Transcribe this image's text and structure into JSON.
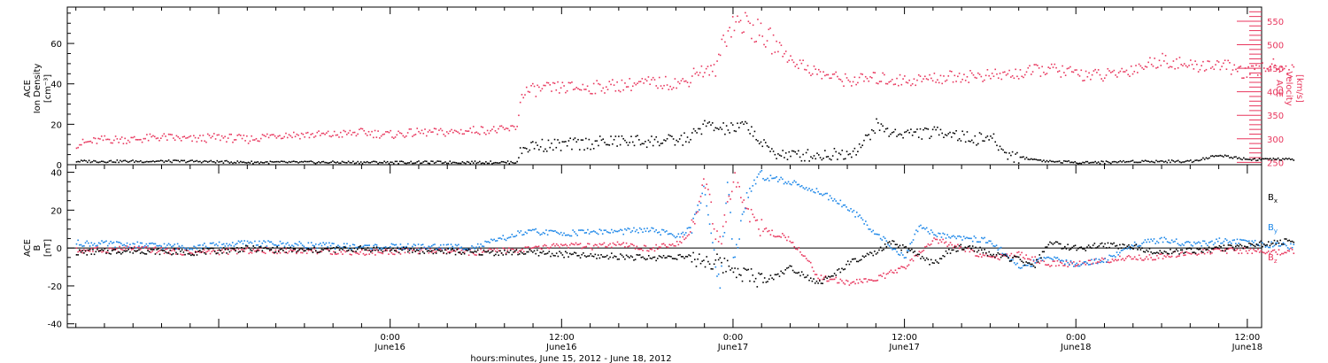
{
  "colors": {
    "black": "#000000",
    "pink": "#e8365d",
    "blue": "#1b86e8"
  },
  "x_axis": {
    "label": "hours:minutes, June 15, 2012 - June 18, 2012",
    "range_hours": [
      -11.3,
      30.5
    ],
    "ticks": [
      {
        "hours": -18,
        "time": "",
        "date": ""
      },
      {
        "hours": -12,
        "time": "",
        "date": ""
      },
      {
        "hours": -6,
        "time": "",
        "date": ""
      },
      {
        "hours": 0,
        "time": "0:00",
        "date": "June16"
      },
      {
        "hours": 6,
        "time": "12:00",
        "date": "June16"
      },
      {
        "hours": 12,
        "time": "0:00",
        "date": "June17"
      },
      {
        "hours": 18,
        "time": "12:00",
        "date": "June17"
      },
      {
        "hours": 24,
        "time": "0:00",
        "date": "June18"
      },
      {
        "hours": 30,
        "time": "12:00",
        "date": "June18"
      }
    ]
  },
  "chart_data": [
    {
      "type": "scatter",
      "panel": "top",
      "ylabel_left": [
        "ACE",
        "Ion Density",
        "[cm⁻³]"
      ],
      "ylabel_right": [
        "ACE",
        "Velocity",
        "[km/s]"
      ],
      "ylim_left": [
        0,
        78
      ],
      "ylim_right": [
        245,
        580
      ],
      "yticks_left": [
        0,
        20,
        40,
        60
      ],
      "yticks_right": [
        250,
        300,
        350,
        400,
        450,
        500,
        550
      ],
      "series": [
        {
          "axis": "left",
          "color": "#000000",
          "points": [
            [
              -11,
              2
            ],
            [
              -9,
              2
            ],
            [
              -7,
              2
            ],
            [
              -5,
              1.5
            ],
            [
              -3,
              1.5
            ],
            [
              -1,
              1.5
            ],
            [
              1,
              1.5
            ],
            [
              3,
              1.5
            ],
            [
              4.4,
              1.5
            ],
            [
              4.6,
              8
            ],
            [
              5,
              10
            ],
            [
              6,
              10
            ],
            [
              7,
              11
            ],
            [
              8,
              12
            ],
            [
              9,
              12
            ],
            [
              10,
              12
            ],
            [
              10.5,
              14
            ],
            [
              11,
              20
            ],
            [
              11.5,
              18
            ],
            [
              12,
              18
            ],
            [
              12.5,
              20
            ],
            [
              13,
              10
            ],
            [
              13.5,
              6
            ],
            [
              14,
              5
            ],
            [
              15,
              5
            ],
            [
              16,
              6
            ],
            [
              16.5,
              10
            ],
            [
              17,
              20
            ],
            [
              17.5,
              16
            ],
            [
              18,
              16
            ],
            [
              19,
              16
            ],
            [
              19.5,
              17
            ],
            [
              20,
              14
            ],
            [
              20.5,
              13
            ],
            [
              21,
              14
            ],
            [
              21.5,
              6
            ],
            [
              22,
              4
            ],
            [
              23,
              2
            ],
            [
              24,
              1.5
            ],
            [
              25,
              1.5
            ],
            [
              26,
              2
            ],
            [
              27,
              2
            ],
            [
              28,
              2
            ],
            [
              29,
              5
            ],
            [
              30,
              3
            ],
            [
              31.5,
              3
            ]
          ]
        },
        {
          "axis": "right",
          "color": "#e8365d",
          "points": [
            [
              -11,
              290
            ],
            [
              -10,
              300
            ],
            [
              -9,
              300
            ],
            [
              -8,
              305
            ],
            [
              -7,
              300
            ],
            [
              -6,
              305
            ],
            [
              -5,
              300
            ],
            [
              -4,
              310
            ],
            [
              -3,
              310
            ],
            [
              -2,
              310
            ],
            [
              -1,
              315
            ],
            [
              0,
              310
            ],
            [
              1,
              315
            ],
            [
              2,
              315
            ],
            [
              3,
              320
            ],
            [
              4,
              320
            ],
            [
              4.4,
              325
            ],
            [
              4.6,
              400
            ],
            [
              5,
              405
            ],
            [
              6,
              410
            ],
            [
              7,
              410
            ],
            [
              8,
              415
            ],
            [
              9,
              420
            ],
            [
              10,
              420
            ],
            [
              10.4,
              422
            ],
            [
              10.6,
              445
            ],
            [
              11,
              445
            ],
            [
              11.4,
              448
            ],
            [
              11.6,
              510
            ],
            [
              12,
              550
            ],
            [
              12.5,
              545
            ],
            [
              13,
              520
            ],
            [
              13.5,
              500
            ],
            [
              14,
              470
            ],
            [
              15,
              440
            ],
            [
              16,
              425
            ],
            [
              17,
              430
            ],
            [
              18,
              425
            ],
            [
              19,
              430
            ],
            [
              20,
              435
            ],
            [
              21,
              435
            ],
            [
              22,
              440
            ],
            [
              23,
              450
            ],
            [
              24,
              440
            ],
            [
              25,
              435
            ],
            [
              26,
              450
            ],
            [
              27,
              470
            ],
            [
              28,
              455
            ],
            [
              29,
              460
            ],
            [
              30,
              440
            ],
            [
              30.5,
              450
            ],
            [
              31,
              460
            ],
            [
              31.5,
              445
            ]
          ]
        }
      ]
    },
    {
      "type": "line",
      "panel": "bottom",
      "ylabel_left": [
        "ACE",
        "B",
        "[nT]"
      ],
      "ylim": [
        -42,
        44
      ],
      "yticks": [
        -40,
        -20,
        0,
        20,
        40
      ],
      "legend": [
        {
          "name": "Bx",
          "base": "B",
          "sub": "x",
          "color": "#000000"
        },
        {
          "name": "By",
          "base": "B",
          "sub": "y",
          "color": "#1b86e8"
        },
        {
          "name": "Bz",
          "base": "B",
          "sub": "z",
          "color": "#e8365d"
        }
      ],
      "series": [
        {
          "name": "Bx",
          "color": "#000000",
          "points": [
            [
              -11,
              -2
            ],
            [
              -9,
              -1
            ],
            [
              -7,
              -2
            ],
            [
              -5,
              0
            ],
            [
              -3,
              -1
            ],
            [
              -1,
              0
            ],
            [
              1,
              -1
            ],
            [
              3,
              -2
            ],
            [
              5,
              -2
            ],
            [
              6,
              -3
            ],
            [
              7,
              -4
            ],
            [
              8,
              -4
            ],
            [
              9,
              -5
            ],
            [
              10,
              -4
            ],
            [
              11,
              -6
            ],
            [
              11.5,
              -8
            ],
            [
              12,
              -10
            ],
            [
              12.5,
              -14
            ],
            [
              13,
              -17
            ],
            [
              13.5,
              -14
            ],
            [
              14,
              -10
            ],
            [
              15,
              -18
            ],
            [
              15.5,
              -14
            ],
            [
              16,
              -8
            ],
            [
              16.5,
              -5
            ],
            [
              17,
              -2
            ],
            [
              17.5,
              3
            ],
            [
              18,
              0
            ],
            [
              18.5,
              -4
            ],
            [
              19,
              -8
            ],
            [
              19.5,
              -2
            ],
            [
              20,
              1
            ],
            [
              20.5,
              0
            ],
            [
              21,
              -3
            ],
            [
              22,
              -6
            ],
            [
              22.5,
              -10
            ],
            [
              23,
              3
            ],
            [
              24,
              0
            ],
            [
              25,
              2
            ],
            [
              26,
              1
            ],
            [
              27,
              -2
            ],
            [
              28,
              -1
            ],
            [
              29,
              0
            ],
            [
              30,
              2
            ],
            [
              31,
              3
            ],
            [
              31.5,
              4
            ]
          ]
        },
        {
          "name": "By",
          "color": "#1b86e8",
          "points": [
            [
              -11,
              3
            ],
            [
              -9,
              2
            ],
            [
              -7,
              1
            ],
            [
              -5,
              3
            ],
            [
              -3,
              2
            ],
            [
              -1,
              1
            ],
            [
              1,
              1
            ],
            [
              3,
              1
            ],
            [
              4.5,
              8
            ],
            [
              5,
              9
            ],
            [
              6,
              8
            ],
            [
              7,
              9
            ],
            [
              8,
              9
            ],
            [
              9,
              10
            ],
            [
              10,
              7
            ],
            [
              10.5,
              10
            ],
            [
              11,
              30
            ],
            [
              11.5,
              -20
            ],
            [
              11.8,
              36
            ],
            [
              12,
              -5
            ],
            [
              12.5,
              30
            ],
            [
              13,
              38
            ],
            [
              14,
              35
            ],
            [
              15,
              30
            ],
            [
              16,
              22
            ],
            [
              17,
              8
            ],
            [
              18,
              -5
            ],
            [
              18.5,
              12
            ],
            [
              19,
              8
            ],
            [
              20,
              6
            ],
            [
              21,
              4
            ],
            [
              22,
              -10
            ],
            [
              23,
              -5
            ],
            [
              24,
              -8
            ],
            [
              25,
              -6
            ],
            [
              26,
              2
            ],
            [
              27,
              5
            ],
            [
              28,
              2
            ],
            [
              29,
              4
            ],
            [
              30,
              3
            ],
            [
              31,
              2
            ],
            [
              31.5,
              1
            ]
          ]
        },
        {
          "name": "Bz",
          "color": "#e8365d",
          "points": [
            [
              -11,
              -1
            ],
            [
              -9,
              0
            ],
            [
              -7,
              -2
            ],
            [
              -5,
              -1
            ],
            [
              -3,
              -1
            ],
            [
              -1,
              -2
            ],
            [
              1,
              -1
            ],
            [
              3,
              -2
            ],
            [
              5,
              0
            ],
            [
              6,
              2
            ],
            [
              7,
              1
            ],
            [
              8,
              2
            ],
            [
              9,
              0
            ],
            [
              10,
              2
            ],
            [
              10.5,
              10
            ],
            [
              11,
              35
            ],
            [
              11.5,
              0
            ],
            [
              12,
              38
            ],
            [
              12.5,
              20
            ],
            [
              13,
              10
            ],
            [
              14,
              5
            ],
            [
              15,
              -15
            ],
            [
              16,
              -18
            ],
            [
              17,
              -16
            ],
            [
              18,
              -10
            ],
            [
              19,
              5
            ],
            [
              20,
              0
            ],
            [
              21,
              -5
            ],
            [
              22,
              -3
            ],
            [
              23,
              -8
            ],
            [
              24,
              -8
            ],
            [
              25,
              -6
            ],
            [
              26,
              -5
            ],
            [
              27,
              -4
            ],
            [
              28,
              -2
            ],
            [
              29,
              -1
            ],
            [
              30,
              -1
            ],
            [
              31,
              -2
            ],
            [
              31.5,
              -1
            ]
          ]
        }
      ]
    }
  ]
}
